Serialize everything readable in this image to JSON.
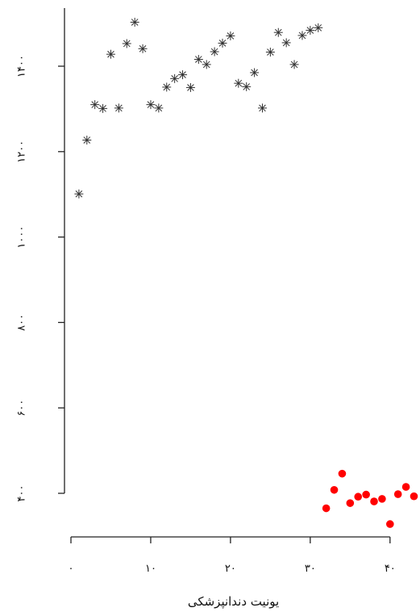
{
  "chart_data": {
    "type": "scatter",
    "xlabel": "یونیت دندانپزشکی",
    "ylabel": "",
    "xlim": [
      0,
      43.5
    ],
    "ylim": [
      280,
      1530
    ],
    "x_ticks": [
      0,
      10,
      20,
      30,
      40
    ],
    "x_tick_labels": [
      "۰",
      "۱۰",
      "۲۰",
      "۳۰",
      "۴۰"
    ],
    "y_ticks": [
      400,
      600,
      800,
      1000,
      1200,
      1400
    ],
    "y_tick_labels": [
      "۴۰۰",
      "۶۰۰",
      "۸۰۰",
      "۱۰۰۰",
      "۱۲۰۰",
      "۱۴۰۰"
    ],
    "grid": false,
    "series": [
      {
        "marker": "asterisk",
        "color": "#333333",
        "points": [
          [
            1,
            1101
          ],
          [
            2,
            1227
          ],
          [
            3,
            1310
          ],
          [
            4,
            1301
          ],
          [
            5,
            1428
          ],
          [
            6,
            1302
          ],
          [
            7,
            1453
          ],
          [
            8,
            1503
          ],
          [
            9,
            1441
          ],
          [
            10,
            1310
          ],
          [
            11,
            1302
          ],
          [
            12,
            1351
          ],
          [
            13,
            1371
          ],
          [
            14,
            1380
          ],
          [
            15,
            1350
          ],
          [
            16,
            1416
          ],
          [
            17,
            1404
          ],
          [
            18,
            1434
          ],
          [
            19,
            1454
          ],
          [
            20,
            1471
          ],
          [
            21,
            1360
          ],
          [
            22,
            1352
          ],
          [
            23,
            1385
          ],
          [
            24,
            1302
          ],
          [
            25,
            1433
          ],
          [
            26,
            1479
          ],
          [
            27,
            1455
          ],
          [
            28,
            1404
          ],
          [
            29,
            1472
          ],
          [
            30,
            1484
          ],
          [
            31,
            1490
          ]
        ]
      },
      {
        "marker": "filled-circle",
        "color": "#ff0000",
        "points": [
          [
            32,
            365
          ],
          [
            33,
            408
          ],
          [
            34,
            446
          ],
          [
            35,
            377
          ],
          [
            36,
            392
          ],
          [
            37,
            397
          ],
          [
            38,
            381
          ],
          [
            39,
            387
          ],
          [
            40,
            328
          ],
          [
            41,
            398
          ],
          [
            42,
            415
          ],
          [
            43,
            393
          ]
        ]
      }
    ]
  }
}
